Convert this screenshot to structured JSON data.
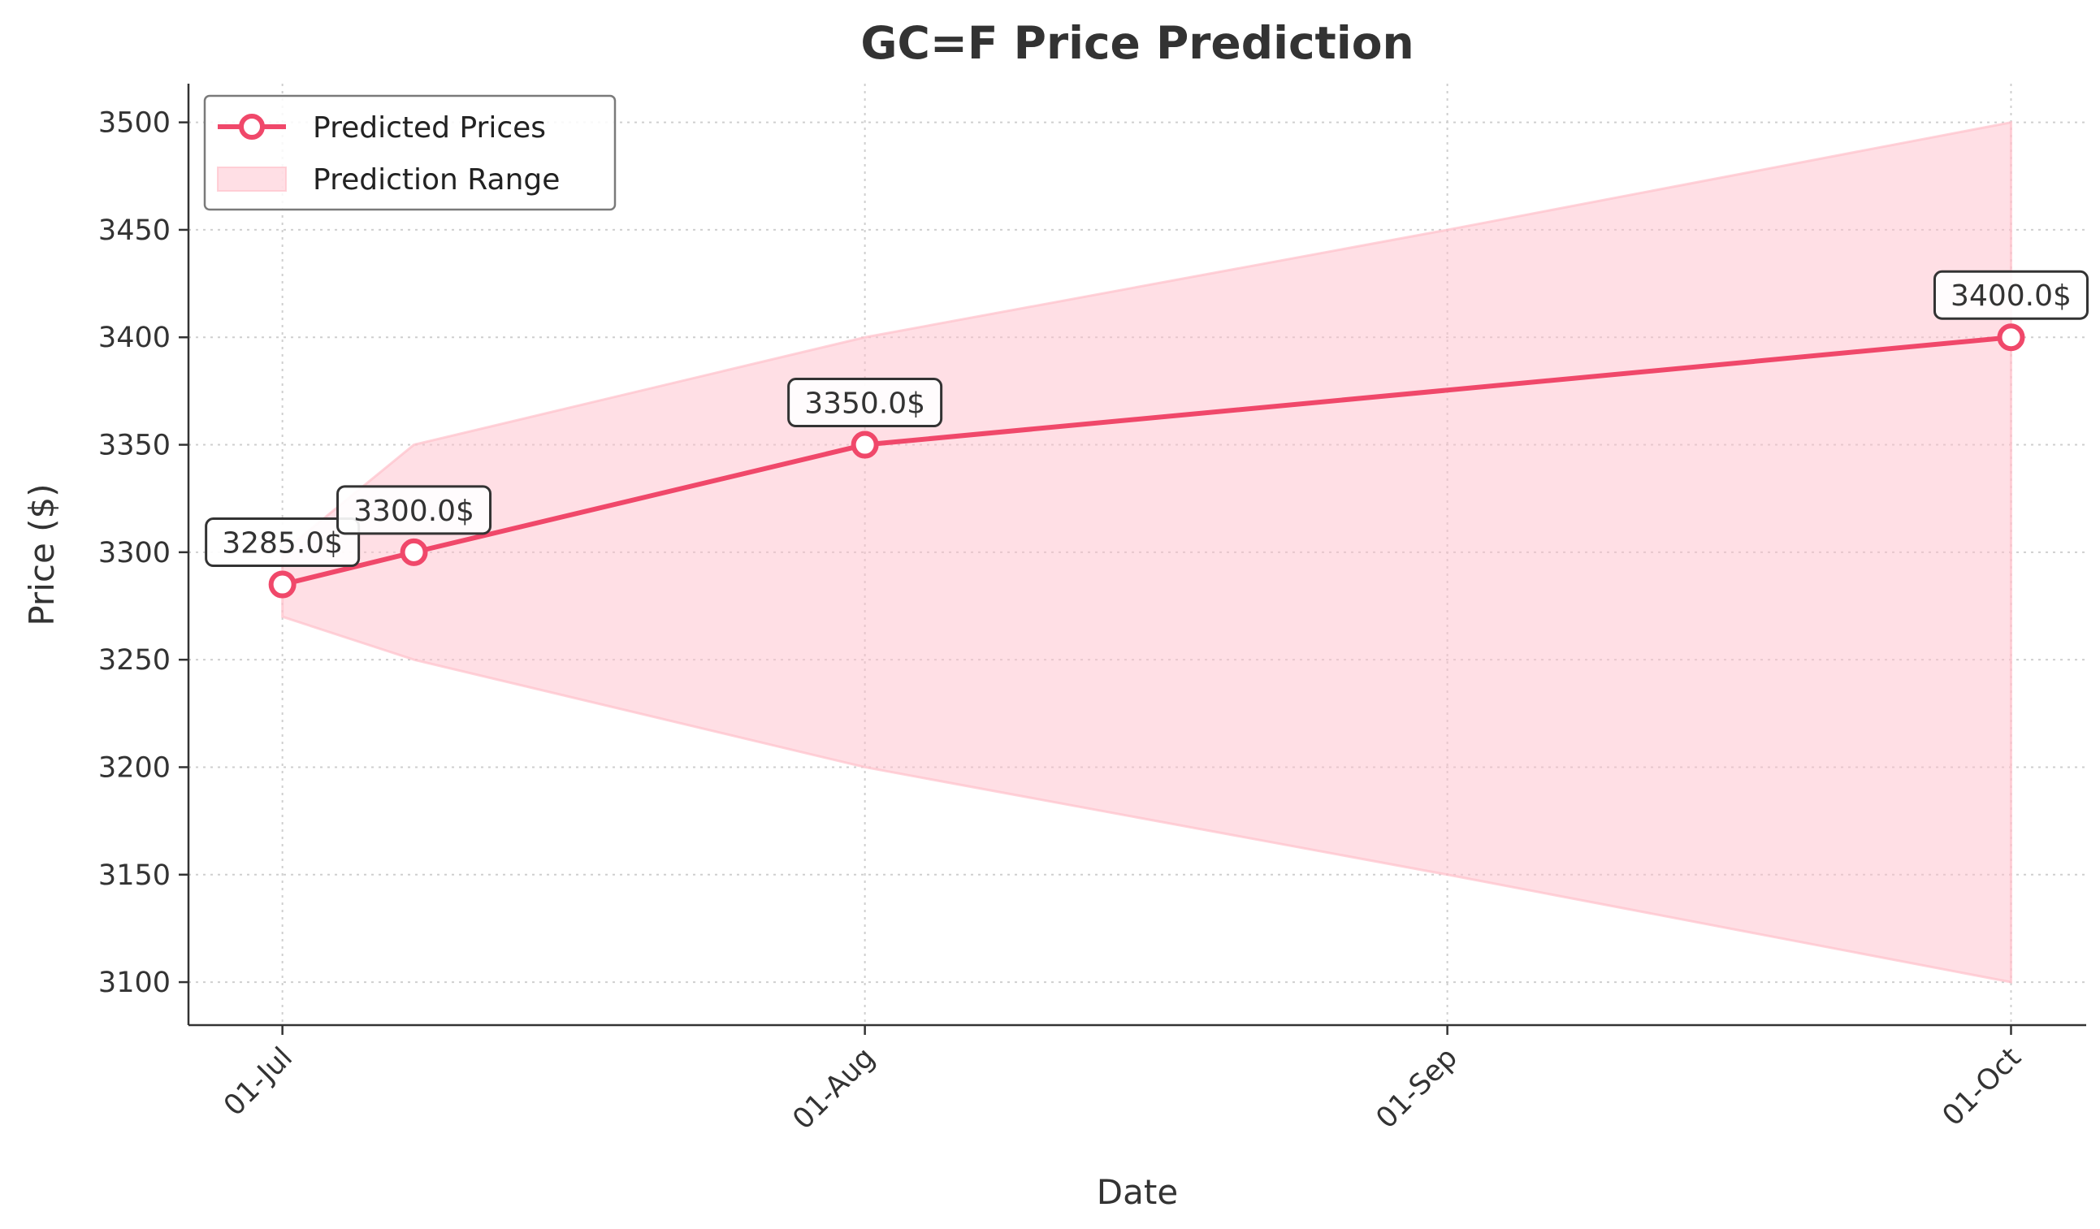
{
  "chart_data": {
    "type": "line",
    "title": "GC=F Price Prediction",
    "xlabel": "Date",
    "ylabel": "Price ($)",
    "x_ticks": [
      {
        "label": "01-Jul",
        "date": "2025-07-01"
      },
      {
        "label": "01-Aug",
        "date": "2025-08-01"
      },
      {
        "label": "01-Sep",
        "date": "2025-09-01"
      },
      {
        "label": "01-Oct",
        "date": "2025-10-01"
      }
    ],
    "y_ticks": [
      3100,
      3150,
      3200,
      3250,
      3300,
      3350,
      3400,
      3450,
      3500
    ],
    "xlim": [
      "2025-06-26",
      "2025-10-05"
    ],
    "ylim": [
      3080,
      3518
    ],
    "grid": true,
    "legend_position": "top-left",
    "series": [
      {
        "name": "Predicted Prices",
        "type": "line",
        "color": "#f0486a",
        "points": [
          {
            "x": "2025-07-01",
            "y": 3285.0,
            "label": "3285.0$"
          },
          {
            "x": "2025-07-08",
            "y": 3300.0,
            "label": "3300.0$"
          },
          {
            "x": "2025-08-01",
            "y": 3350.0,
            "label": "3350.0$"
          },
          {
            "x": "2025-10-01",
            "y": 3400.0,
            "label": "3400.0$"
          }
        ]
      },
      {
        "name": "Prediction Range",
        "type": "area",
        "color": "#ffc0cb",
        "points": [
          {
            "x": "2025-07-01",
            "low": 3270,
            "high": 3300
          },
          {
            "x": "2025-07-08",
            "low": 3250,
            "high": 3350
          },
          {
            "x": "2025-08-01",
            "low": 3200,
            "high": 3400
          },
          {
            "x": "2025-09-01",
            "low": 3150,
            "high": 3450
          },
          {
            "x": "2025-10-01",
            "low": 3100,
            "high": 3500
          }
        ]
      }
    ]
  }
}
